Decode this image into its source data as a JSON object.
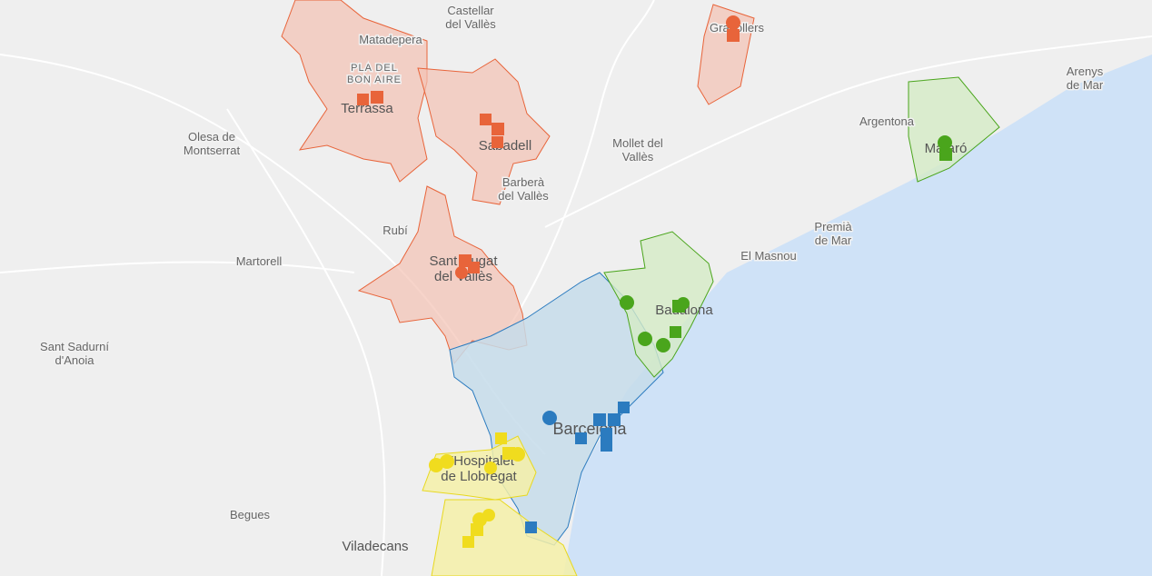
{
  "map": {
    "places": [
      [
        "Castellar",
        "del Vallès"
      ],
      [
        "Matadepera"
      ],
      [
        "PLA DEL",
        "BON AIRE"
      ],
      [
        "Terrassa"
      ],
      [
        "Sabadell"
      ],
      [
        "Granollers"
      ],
      [
        "Arenys",
        "de Mar"
      ],
      [
        "Argentona"
      ],
      [
        "Mataró"
      ],
      [
        "Olesa de",
        "Montserrat"
      ],
      [
        "Mollet del",
        "Vallès"
      ],
      [
        "Barberà",
        "del Vallès"
      ],
      [
        "Rubí"
      ],
      [
        "Sant Cugat",
        "del Vallès"
      ],
      [
        "Martorell"
      ],
      [
        "Premià",
        "de Mar"
      ],
      [
        "El Masnou"
      ],
      [
        "Badalona"
      ],
      [
        "Sant Sadurní",
        "d'Anoia"
      ],
      [
        "Barcelona"
      ],
      [
        "L'Hospitalet",
        "de Llobregat"
      ],
      [
        "Begues"
      ],
      [
        "Viladecans"
      ]
    ]
  }
}
